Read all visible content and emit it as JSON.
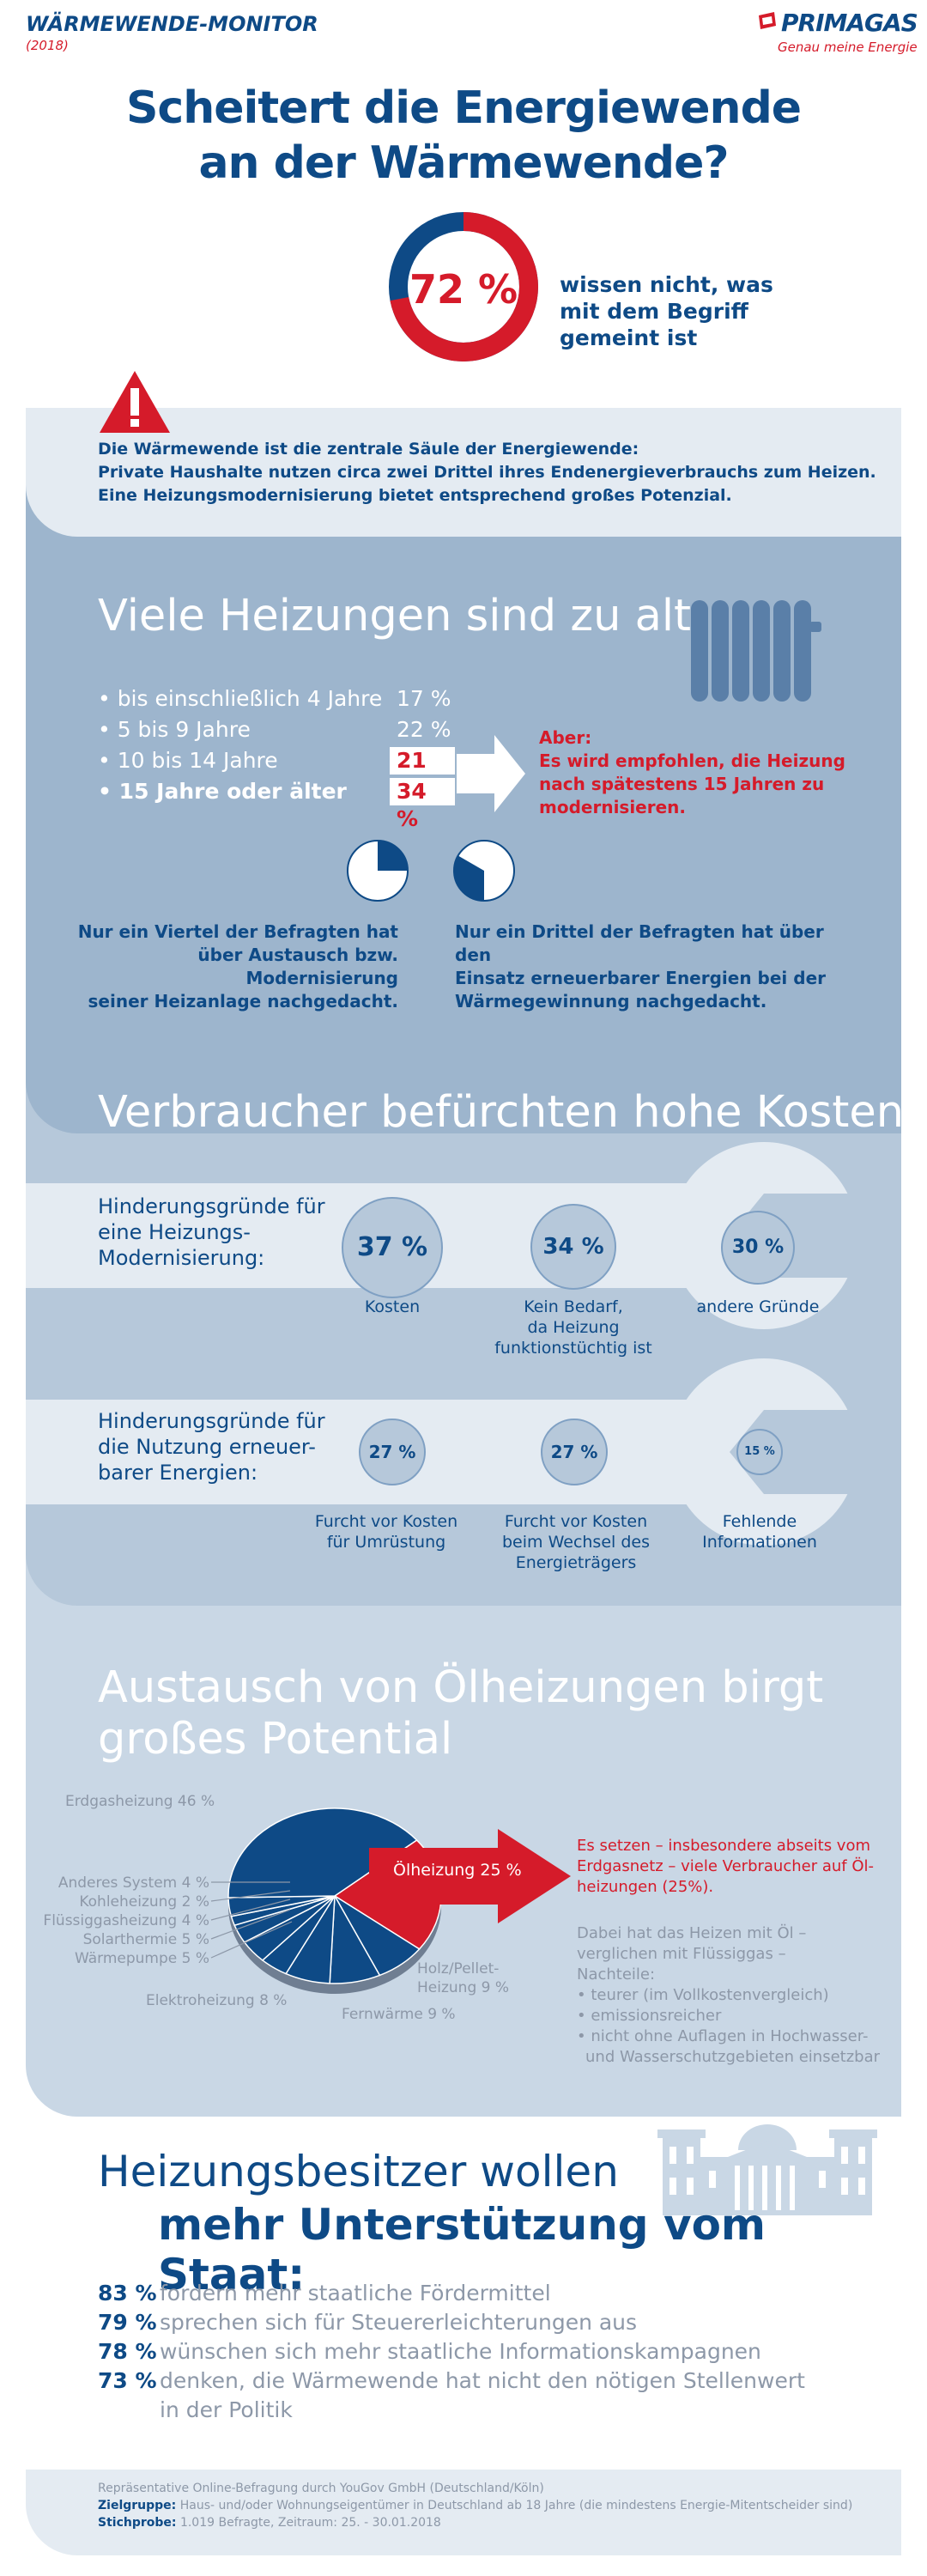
{
  "header": {
    "series_title": "WÄRMEWENDE-MONITOR",
    "year": "(2018)",
    "brand": "PRIMAGAS",
    "brand_tagline": "Genau meine Energie"
  },
  "hero": {
    "title_line1": "Scheitert die Energiewende",
    "title_line2": "an der Wärmewende?",
    "stat_value": "72 %",
    "stat_fraction": 0.72,
    "stat_text_line1": "wissen nicht, was",
    "stat_text_line2": "mit dem Begriff",
    "stat_text_line3": "gemeint ist"
  },
  "warning": {
    "line1": "Die Wärmewende ist die zentrale Säule der Energiewende:",
    "line2": "Private Haushalte nutzen circa zwei Drittel ihres Endenergieverbrauchs zum Heizen.",
    "line3": "Eine Heizungsmodernisierung bietet entsprechend großes Potenzial."
  },
  "section_age": {
    "title": "Viele Heizungen sind zu alt",
    "items": [
      {
        "label": "• bis einschließlich 4 Jahre",
        "value": "17 %"
      },
      {
        "label": "• 5 bis 9 Jahre",
        "value": "22 %"
      },
      {
        "label": "• 10 bis 14 Jahre",
        "value": "21 %"
      },
      {
        "label": "• 15 Jahre oder älter",
        "value": "34 %"
      }
    ],
    "note_line1": "Aber:",
    "note_line2": "Es wird empfohlen, die Heizung",
    "note_line3": "nach spätestens 15 Jahren zu",
    "note_line4": "modernisieren.",
    "pie1_fraction": 0.25,
    "pie2_fraction": 0.3333,
    "caption1_line1": "Nur ein Viertel der Befragten hat",
    "caption1_line2": "über Austausch bzw. Modernisierung",
    "caption1_line3": "seiner Heizanlage nachgedacht.",
    "caption2_line1": "Nur ein Drittel der Befragten hat über den",
    "caption2_line2": "Einsatz erneuerbarer Energien bei der",
    "caption2_line3": "Wärmegewinnung nachgedacht."
  },
  "section_costs": {
    "title": "Verbraucher befürchten hohe Kosten",
    "row1": {
      "label_line1": "Hinderungsgründe für",
      "label_line2": "eine Heizungs-",
      "label_line3": "Modernisierung:",
      "items": [
        {
          "value": "37 %",
          "cap1": "Kosten",
          "cap2": "",
          "cap3": ""
        },
        {
          "value": "34 %",
          "cap1": "Kein Bedarf,",
          "cap2": "da Heizung",
          "cap3": "funktionstüchtig ist"
        },
        {
          "value": "30 %",
          "cap1": "andere Gründe",
          "cap2": "",
          "cap3": ""
        }
      ]
    },
    "row2": {
      "label_line1": "Hinderungsgründe für",
      "label_line2": "die Nutzung erneuer-",
      "label_line3": "barer Energien:",
      "items": [
        {
          "value": "27 %",
          "cap1": "Furcht vor Kosten",
          "cap2": "für Umrüstung",
          "cap3": ""
        },
        {
          "value": "27 %",
          "cap1": "Furcht vor Kosten",
          "cap2": "beim Wechsel des",
          "cap3": "Energieträgers"
        },
        {
          "value": "15 %",
          "cap1": "Fehlende",
          "cap2": "Informationen",
          "cap3": ""
        }
      ]
    }
  },
  "section_oil": {
    "title_line1": "Austausch von Ölheizungen birgt",
    "title_line2": "großes Potential",
    "chart_data": {
      "type": "pie",
      "slices": [
        {
          "label": "Erdgasheizung",
          "value": 46,
          "display": "Erdgasheizung 46 %"
        },
        {
          "label": "Ölheizung",
          "value": 25,
          "display": "Ölheizung 25 %"
        },
        {
          "label": "Holz/Pellet-Heizung",
          "value": 9,
          "display": "Holz/Pellet-Heizung 9 %"
        },
        {
          "label": "Fernwärme",
          "value": 9,
          "display": "Fernwärme 9 %"
        },
        {
          "label": "Elektroheizung",
          "value": 8,
          "display": "Elektroheizung 8 %"
        },
        {
          "label": "Wärmepumpe",
          "value": 5,
          "display": "Wärmepumpe 5 %"
        },
        {
          "label": "Solarthermie",
          "value": 5,
          "display": "Solarthermie 5 %"
        },
        {
          "label": "Flüssiggasheizung",
          "value": 4,
          "display": "Flüssiggasheizung 4 %"
        },
        {
          "label": "Kohleheizung",
          "value": 2,
          "display": "Kohleheizung 2 %"
        },
        {
          "label": "Anderes System",
          "value": 4,
          "display": "Anderes System 4 %"
        }
      ]
    },
    "label_holz_1": "Holz/Pellet-",
    "label_holz_2": "Heizung 9 %",
    "red_line1": "Es setzen – insbesondere abseits vom",
    "red_line2": "Erdgasnetz – viele Verbraucher auf Öl-",
    "red_line3": "heizungen (25%).",
    "grey_line1": "Dabei hat das Heizen mit Öl –",
    "grey_line2": "verglichen mit Flüssiggas –",
    "grey_line3": "Nachteile:",
    "bullets": [
      "• teurer (im Vollkostenvergleich)",
      "• emissionsreicher",
      "• nicht ohne Auflagen in Hochwasser-",
      "  und Wasserschutzgebieten einsetzbar"
    ]
  },
  "section_state": {
    "title_line1": "Heizungsbesitzer wollen",
    "title_line2": "mehr Unterstützung vom Staat:",
    "items": [
      {
        "value": "83 %",
        "text": "fordern mehr staatliche Fördermittel"
      },
      {
        "value": "79 %",
        "text": "sprechen sich für Steuererleichterungen aus"
      },
      {
        "value": "78 %",
        "text": "wünschen sich mehr staatliche Informationskampagnen"
      },
      {
        "value": "73 %",
        "text": "denken, die Wärmewende hat nicht den nötigen Stellenwert"
      }
    ],
    "item4_line2": "in der Politik"
  },
  "footer": {
    "line1": "Repräsentative Online-Befragung durch YouGov GmbH (Deutschland/Köln)",
    "label2": "Zielgruppe:",
    "line2": " Haus- und/oder Wohnungseigentümer in Deutschland ab 18 Jahre (die mindestens Energie-Mitentscheider sind)",
    "label3": "Stichprobe:",
    "line3": " 1.019 Befragte, Zeitraum: 25. - 30.01.2018"
  },
  "colors": {
    "navy": "#0e4a86",
    "red": "#d51b2a",
    "panel_dark": "#9db5cd",
    "panel_mid": "#b6c8da",
    "panel_light": "#c9d7e5",
    "panel_lightest": "#e4ebf2"
  }
}
